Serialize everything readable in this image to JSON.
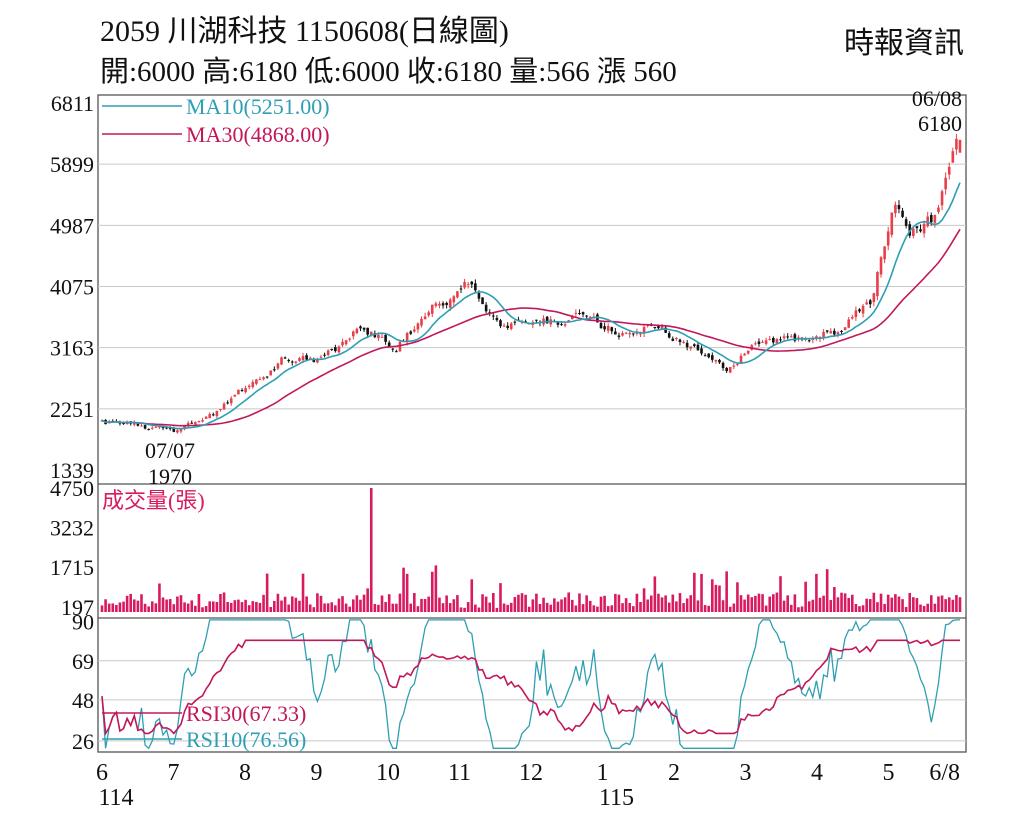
{
  "header": {
    "title": "2059  川湖科技 1150608(日線圖)",
    "source": "時報資訊",
    "stats": "開:6000 高:6180 低:6000 收:6180 量:566 漲 560"
  },
  "colors": {
    "up": "#e8404a",
    "down": "#111111",
    "ma10": "#2e9fb3",
    "ma30": "#c2185b",
    "volume": "#d81b60",
    "rsi30": "#c2185b",
    "rsi10": "#2e9fb3"
  },
  "chart_data": [
    {
      "type": "line",
      "name": "price",
      "legend": [
        {
          "label": "MA10(5251.00)",
          "color": "#2e9fb3"
        },
        {
          "label": "MA30(4868.00)",
          "color": "#c2185b"
        }
      ],
      "y_ticks": [
        "6811",
        "5899",
        "4987",
        "4075",
        "3163",
        "2251",
        "1339"
      ],
      "ylim": [
        1339,
        6811
      ],
      "annotations": [
        {
          "date": "07/07",
          "value": "1970"
        },
        {
          "date": "06/08",
          "value": "6180"
        }
      ],
      "x_ticks": [
        "6",
        "7",
        "8",
        "9",
        "10",
        "11",
        "12",
        "1",
        "2",
        "3",
        "4",
        "5",
        "6/8"
      ],
      "x_sub": [
        "114",
        "115"
      ],
      "close_path": [
        [
          6,
          2200
        ],
        [
          7,
          2050
        ],
        [
          7.5,
          2300
        ],
        [
          8,
          2750
        ],
        [
          8.5,
          3100
        ],
        [
          9,
          3050
        ],
        [
          9.5,
          3500
        ],
        [
          10,
          3300
        ],
        [
          10.5,
          3800
        ],
        [
          11,
          4150
        ],
        [
          11.4,
          3500
        ],
        [
          12,
          3600
        ],
        [
          12.5,
          3700
        ],
        [
          13,
          3500
        ],
        [
          13.5,
          3600
        ],
        [
          14,
          3300
        ],
        [
          14.5,
          2950
        ],
        [
          15,
          3400
        ],
        [
          15.5,
          3400
        ],
        [
          16,
          3500
        ],
        [
          16.5,
          3900
        ],
        [
          16.8,
          5300
        ],
        [
          17,
          4900
        ],
        [
          17.4,
          5100
        ],
        [
          17.7,
          6180
        ]
      ],
      "ma10_end": 5251.0,
      "ma30_end": 4868.0
    },
    {
      "type": "bar",
      "name": "volume",
      "title": "成交量(張)",
      "y_ticks": [
        "4750",
        "3232",
        "1715",
        "197"
      ],
      "ylim": [
        0,
        4750
      ],
      "peak": 4750,
      "last": 566
    },
    {
      "type": "line",
      "name": "rsi",
      "y_ticks": [
        "90",
        "69",
        "48",
        "26"
      ],
      "ylim": [
        20,
        92
      ],
      "legend": [
        {
          "label": "RSI30(67.33)",
          "color": "#c2185b"
        },
        {
          "label": "RSI10(76.56)",
          "color": "#2e9fb3"
        }
      ],
      "rsi30_end": 67.33,
      "rsi10_end": 76.56
    }
  ]
}
